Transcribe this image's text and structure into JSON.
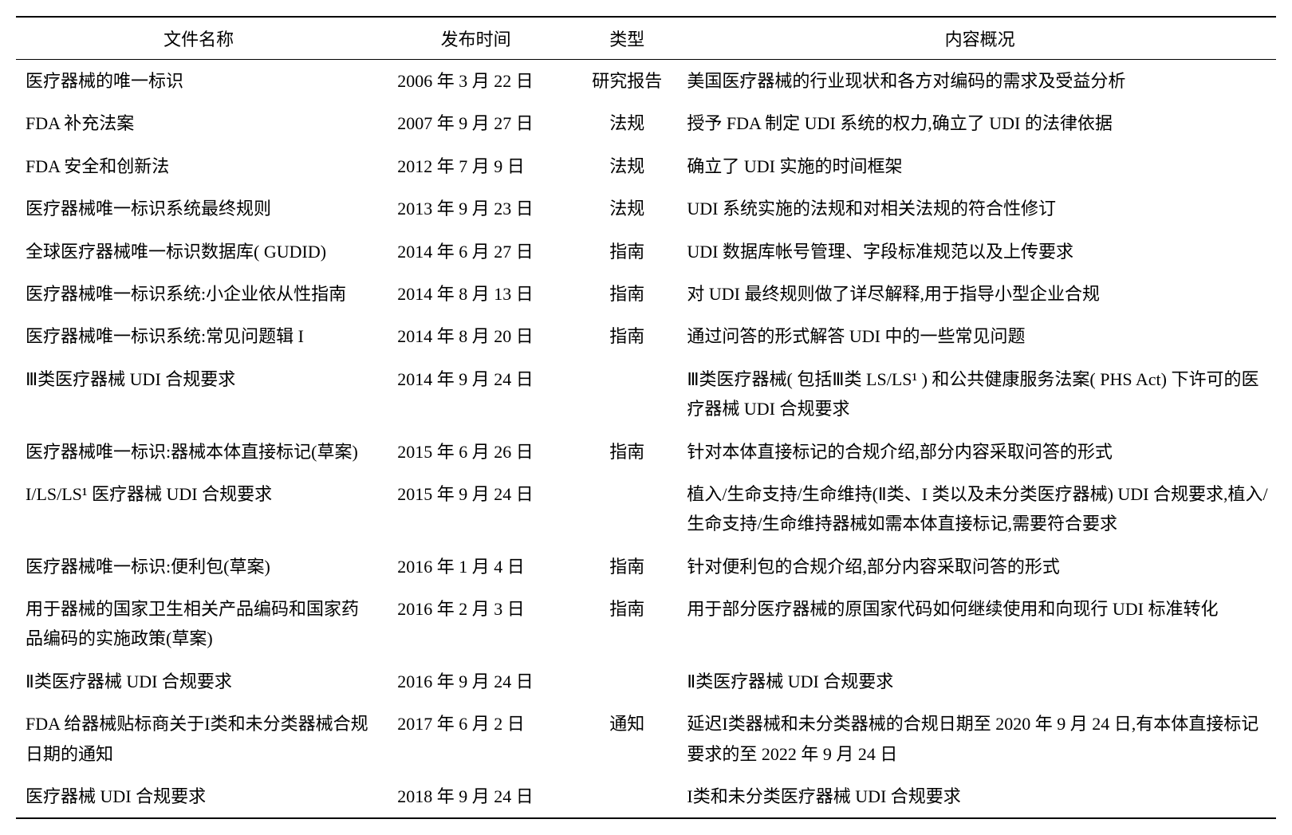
{
  "table": {
    "headers": {
      "name": "文件名称",
      "date": "发布时间",
      "type": "类型",
      "summary": "内容概况"
    },
    "column_widths": [
      "29%",
      "15%",
      "9%",
      "47%"
    ],
    "font_size": 22,
    "line_height": 1.7,
    "text_color": "#000000",
    "background_color": "#ffffff",
    "border_color": "#000000",
    "border_top_width": 2,
    "border_header_width": 1.5,
    "border_bottom_width": 2,
    "rows": [
      {
        "name": "医疗器械的唯一标识",
        "date": "2006 年 3 月 22 日",
        "type": "研究报告",
        "summary": "美国医疗器械的行业现状和各方对编码的需求及受益分析"
      },
      {
        "name": "FDA 补充法案",
        "date": "2007 年 9 月 27 日",
        "type": "法规",
        "summary": "授予 FDA 制定 UDI 系统的权力,确立了 UDI 的法律依据"
      },
      {
        "name": "FDA 安全和创新法",
        "date": "2012 年 7 月 9 日",
        "type": "法规",
        "summary": "确立了 UDI 实施的时间框架"
      },
      {
        "name": "医疗器械唯一标识系统最终规则",
        "date": "2013 年 9 月 23 日",
        "type": "法规",
        "summary": "UDI 系统实施的法规和对相关法规的符合性修订"
      },
      {
        "name": "全球医疗器械唯一标识数据库( GUDID)",
        "date": "2014 年 6 月 27 日",
        "type": "指南",
        "summary": "UDI 数据库帐号管理、字段标准规范以及上传要求"
      },
      {
        "name": "医疗器械唯一标识系统:小企业依从性指南",
        "date": "2014 年 8 月 13 日",
        "type": "指南",
        "summary": "对 UDI 最终规则做了详尽解释,用于指导小型企业合规"
      },
      {
        "name": "医疗器械唯一标识系统:常见问题辑 I",
        "date": "2014 年 8 月 20 日",
        "type": "指南",
        "summary": "通过问答的形式解答 UDI 中的一些常见问题"
      },
      {
        "name": "Ⅲ类医疗器械 UDI 合规要求",
        "date": "2014 年 9 月 24 日",
        "type": "",
        "summary": "Ⅲ类医疗器械( 包括Ⅲ类 LS/LS¹ ) 和公共健康服务法案( PHS Act) 下许可的医疗器械 UDI 合规要求"
      },
      {
        "name": "医疗器械唯一标识:器械本体直接标记(草案)",
        "date": "2015 年 6 月 26 日",
        "type": "指南",
        "summary": "针对本体直接标记的合规介绍,部分内容采取问答的形式"
      },
      {
        "name": "I/LS/LS¹ 医疗器械 UDI 合规要求",
        "date": "2015 年 9 月 24 日",
        "type": "",
        "summary": "植入/生命支持/生命维持(Ⅱ类、I 类以及未分类医疗器械) UDI 合规要求,植入/生命支持/生命维持器械如需本体直接标记,需要符合要求"
      },
      {
        "name": "医疗器械唯一标识:便利包(草案)",
        "date": "2016 年 1 月 4 日",
        "type": "指南",
        "summary": "针对便利包的合规介绍,部分内容采取问答的形式"
      },
      {
        "name": "用于器械的国家卫生相关产品编码和国家药品编码的实施政策(草案)",
        "date": "2016 年 2 月 3 日",
        "type": "指南",
        "summary": "用于部分医疗器械的原国家代码如何继续使用和向现行 UDI 标准转化"
      },
      {
        "name": "Ⅱ类医疗器械 UDI 合规要求",
        "date": "2016 年 9 月 24 日",
        "type": "",
        "summary": "Ⅱ类医疗器械 UDI 合规要求"
      },
      {
        "name": "FDA 给器械贴标商关于I类和未分类器械合规日期的通知",
        "date": "2017 年 6 月 2 日",
        "type": "通知",
        "summary": "延迟I类器械和未分类器械的合规日期至 2020 年 9 月 24 日,有本体直接标记要求的至 2022 年 9 月 24 日"
      },
      {
        "name": "医疗器械 UDI 合规要求",
        "date": "2018 年 9 月 24 日",
        "type": "",
        "summary": "I类和未分类医疗器械 UDI 合规要求"
      }
    ]
  }
}
